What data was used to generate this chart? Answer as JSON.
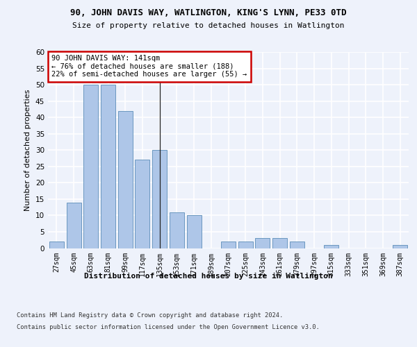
{
  "title": "90, JOHN DAVIS WAY, WATLINGTON, KING'S LYNN, PE33 0TD",
  "subtitle": "Size of property relative to detached houses in Watlington",
  "xlabel": "Distribution of detached houses by size in Watlington",
  "ylabel": "Number of detached properties",
  "categories": [
    "27sqm",
    "45sqm",
    "63sqm",
    "81sqm",
    "99sqm",
    "117sqm",
    "135sqm",
    "153sqm",
    "171sqm",
    "189sqm",
    "207sqm",
    "225sqm",
    "243sqm",
    "261sqm",
    "279sqm",
    "297sqm",
    "315sqm",
    "333sqm",
    "351sqm",
    "369sqm",
    "387sqm"
  ],
  "values": [
    2,
    14,
    50,
    50,
    42,
    27,
    30,
    11,
    10,
    0,
    2,
    2,
    3,
    3,
    2,
    0,
    1,
    0,
    0,
    0,
    1
  ],
  "bar_color": "#aec6e8",
  "bar_edge_color": "#5b8db8",
  "highlight_index": 6,
  "highlight_line_color": "#222222",
  "annotation_text": "90 JOHN DAVIS WAY: 141sqm\n← 76% of detached houses are smaller (188)\n22% of semi-detached houses are larger (55) →",
  "annotation_box_facecolor": "#ffffff",
  "annotation_box_edgecolor": "#cc0000",
  "ylim": [
    0,
    60
  ],
  "yticks": [
    0,
    5,
    10,
    15,
    20,
    25,
    30,
    35,
    40,
    45,
    50,
    55,
    60
  ],
  "background_color": "#eef2fb",
  "grid_color": "#ffffff",
  "footer_line1": "Contains HM Land Registry data © Crown copyright and database right 2024.",
  "footer_line2": "Contains public sector information licensed under the Open Government Licence v3.0."
}
